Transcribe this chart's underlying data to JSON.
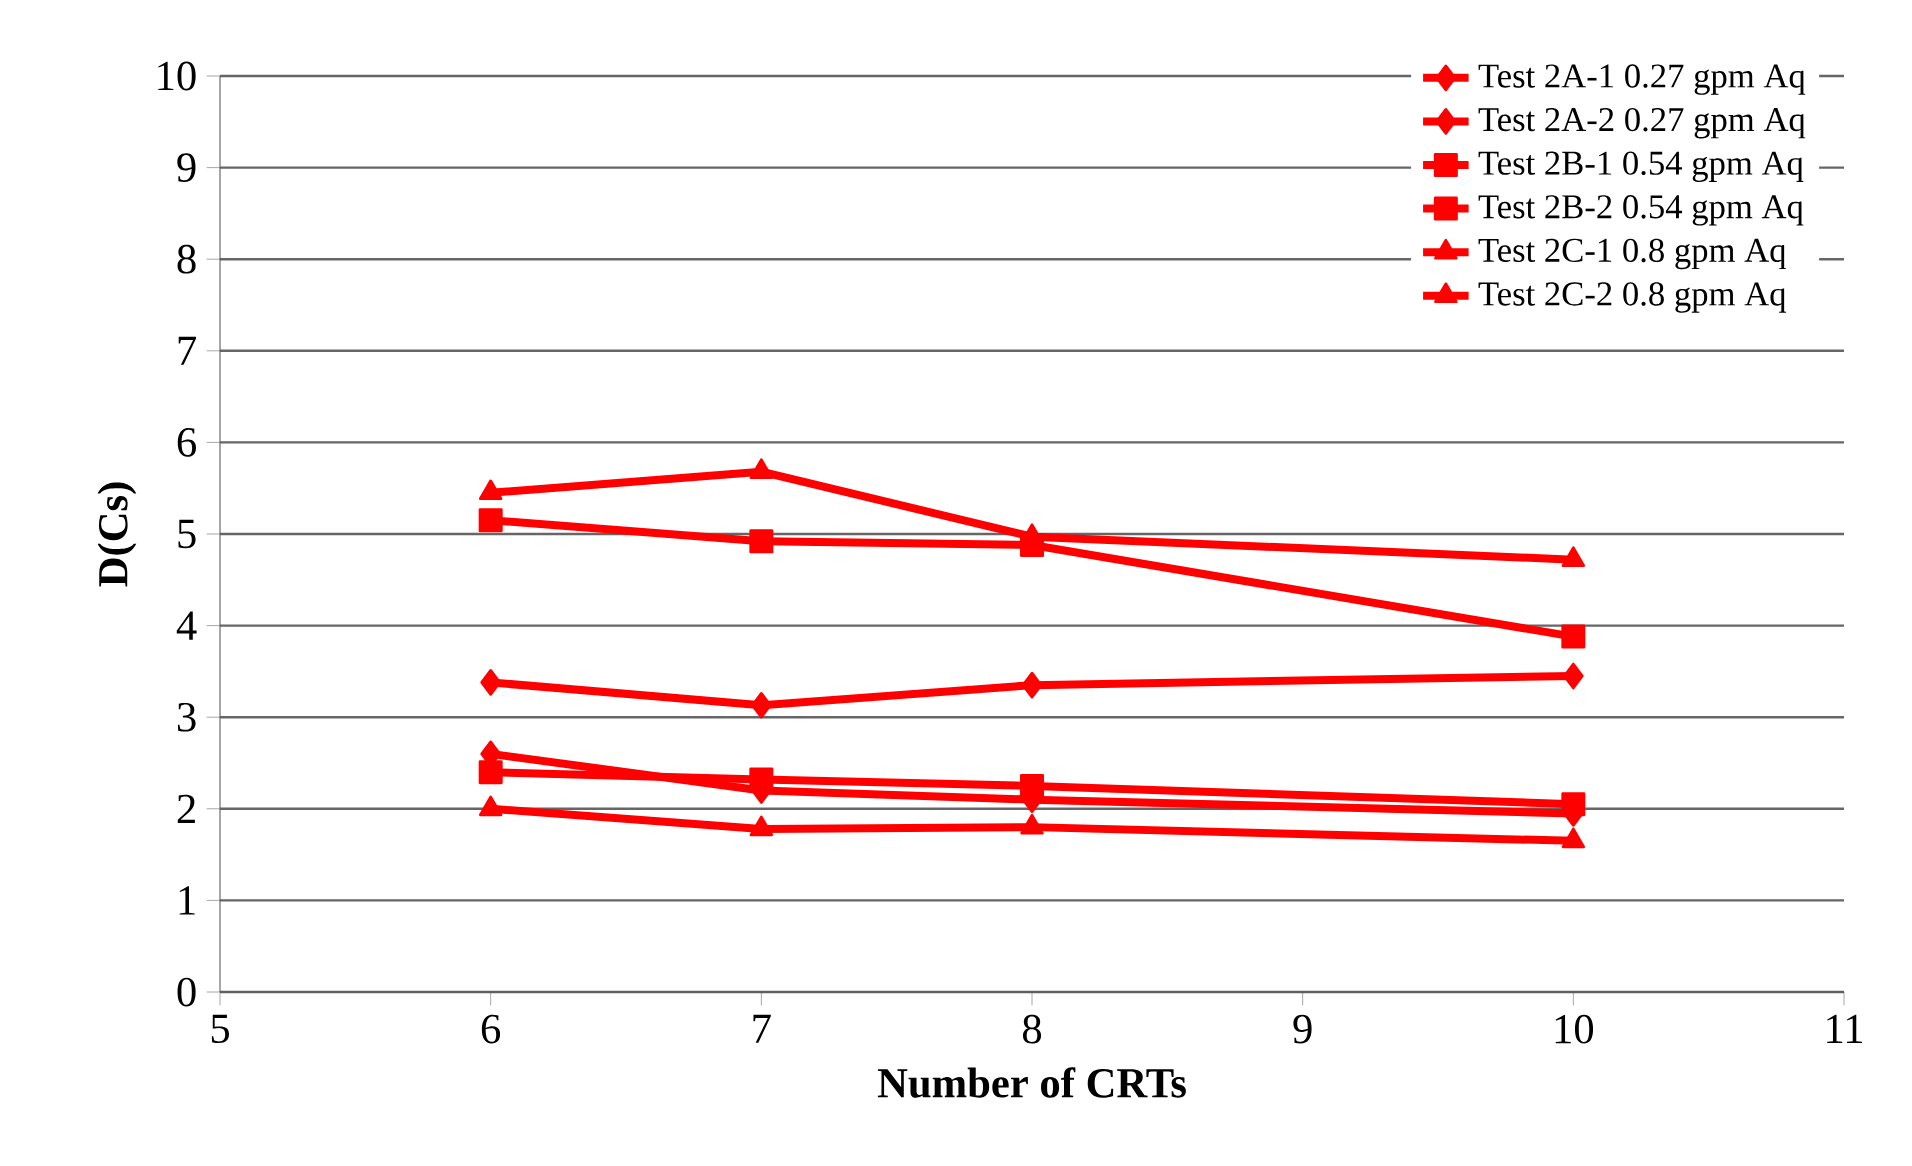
{
  "chart_data": {
    "type": "line",
    "xlabel": "Number of CRTs",
    "ylabel": "D(Cs)",
    "x": [
      6,
      7,
      8,
      10
    ],
    "xlim": [
      5,
      11
    ],
    "xticks": [
      5,
      6,
      7,
      8,
      9,
      10,
      11
    ],
    "ylim": [
      0,
      10
    ],
    "yticks": [
      0,
      1,
      2,
      3,
      4,
      5,
      6,
      7,
      8,
      9,
      10
    ],
    "grid": "y",
    "legend": "top right",
    "line_style": "solid",
    "series": [
      {
        "name": "Test 2A-1 0.27 gpm Aq",
        "color": "#ff0000",
        "marker": "diamond",
        "values": [
          3.38,
          3.13,
          3.35,
          3.45
        ]
      },
      {
        "name": "Test 2A-2 0.27 gpm Aq",
        "color": "#ff0000",
        "marker": "diamond",
        "values": [
          2.6,
          2.2,
          2.1,
          1.95
        ]
      },
      {
        "name": "Test 2B-1 0.54 gpm Aq",
        "color": "#ff0000",
        "marker": "square",
        "values": [
          5.15,
          4.92,
          4.88,
          3.88
        ]
      },
      {
        "name": "Test 2B-2 0.54 gpm Aq",
        "color": "#ff0000",
        "marker": "square",
        "values": [
          2.4,
          2.32,
          2.25,
          2.05
        ]
      },
      {
        "name": "Test 2C-1 0.8 gpm Aq",
        "color": "#ff0000",
        "marker": "triangle",
        "values": [
          5.45,
          5.68,
          4.97,
          4.72
        ]
      },
      {
        "name": "Test 2C-2 0.8 gpm Aq",
        "color": "#ff0000",
        "marker": "triangle",
        "values": [
          2.0,
          1.78,
          1.8,
          1.65
        ]
      }
    ]
  }
}
